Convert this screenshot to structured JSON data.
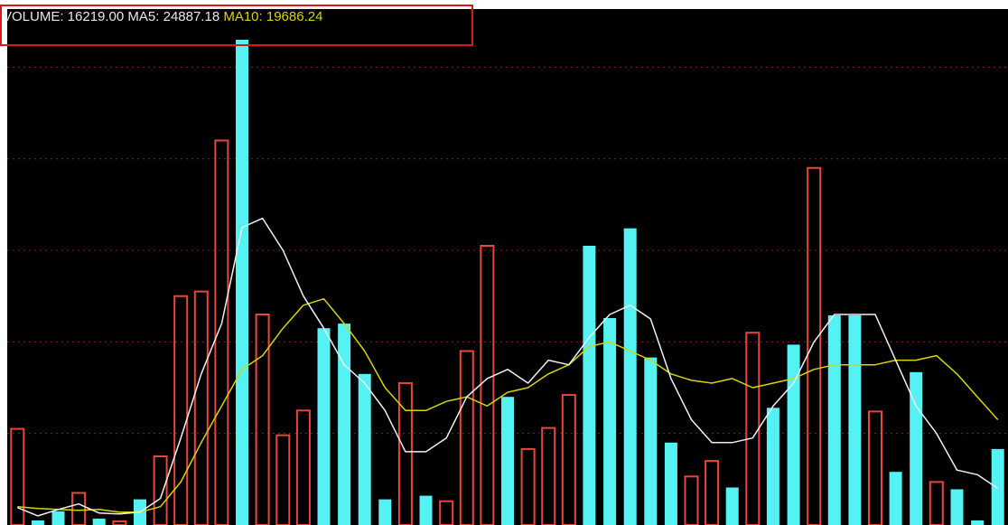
{
  "header": {
    "volume_text": "VOLUME: 16219.00",
    "ma5_text": "MA5: 24887.18",
    "ma10_text": "MA10: 19686.24"
  },
  "colors": {
    "background": "#000000",
    "up_bar": "#e8463c",
    "down_bar": "#54f2f2",
    "ma5_line": "#f0f0f0",
    "ma10_line": "#d8d400",
    "grid": "#8a1c1c",
    "highlight_box": "#d81818"
  },
  "chart_data": {
    "type": "bar",
    "title": "",
    "ylim": [
      0,
      53000
    ],
    "grid": true,
    "grid_values": [
      10000,
      20000,
      30000,
      40000,
      50000
    ],
    "bars": [
      {
        "value": 10500,
        "dir": "up"
      },
      {
        "value": 500,
        "dir": "down"
      },
      {
        "value": 1500,
        "dir": "down"
      },
      {
        "value": 3500,
        "dir": "up"
      },
      {
        "value": 700,
        "dir": "down"
      },
      {
        "value": 400,
        "dir": "up"
      },
      {
        "value": 2800,
        "dir": "down"
      },
      {
        "value": 7500,
        "dir": "up"
      },
      {
        "value": 25000,
        "dir": "up"
      },
      {
        "value": 25500,
        "dir": "up"
      },
      {
        "value": 42000,
        "dir": "up"
      },
      {
        "value": 53000,
        "dir": "down"
      },
      {
        "value": 23000,
        "dir": "up"
      },
      {
        "value": 9800,
        "dir": "up"
      },
      {
        "value": 12500,
        "dir": "up"
      },
      {
        "value": 21500,
        "dir": "down"
      },
      {
        "value": 22000,
        "dir": "down"
      },
      {
        "value": 16500,
        "dir": "down"
      },
      {
        "value": 2800,
        "dir": "down"
      },
      {
        "value": 15500,
        "dir": "up"
      },
      {
        "value": 3200,
        "dir": "down"
      },
      {
        "value": 2600,
        "dir": "up"
      },
      {
        "value": 19000,
        "dir": "up"
      },
      {
        "value": 30500,
        "dir": "up"
      },
      {
        "value": 14000,
        "dir": "down"
      },
      {
        "value": 8300,
        "dir": "up"
      },
      {
        "value": 10600,
        "dir": "up"
      },
      {
        "value": 14200,
        "dir": "up"
      },
      {
        "value": 30500,
        "dir": "down"
      },
      {
        "value": 22600,
        "dir": "down"
      },
      {
        "value": 32400,
        "dir": "down"
      },
      {
        "value": 18300,
        "dir": "down"
      },
      {
        "value": 9000,
        "dir": "down"
      },
      {
        "value": 5300,
        "dir": "up"
      },
      {
        "value": 7000,
        "dir": "up"
      },
      {
        "value": 4100,
        "dir": "down"
      },
      {
        "value": 21000,
        "dir": "up"
      },
      {
        "value": 12800,
        "dir": "down"
      },
      {
        "value": 19700,
        "dir": "down"
      },
      {
        "value": 39000,
        "dir": "up"
      },
      {
        "value": 22900,
        "dir": "down"
      },
      {
        "value": 22900,
        "dir": "down"
      },
      {
        "value": 12400,
        "dir": "up"
      },
      {
        "value": 5800,
        "dir": "down"
      },
      {
        "value": 16700,
        "dir": "down"
      },
      {
        "value": 4700,
        "dir": "up"
      },
      {
        "value": 3900,
        "dir": "down"
      },
      {
        "value": 500,
        "dir": "down"
      },
      {
        "value": 8300,
        "dir": "down"
      }
    ],
    "ma5": [
      1900,
      1000,
      1700,
      2300,
      1300,
      1200,
      1400,
      2900,
      9500,
      16500,
      22000,
      32500,
      33500,
      30000,
      25000,
      21500,
      17500,
      15500,
      12500,
      8000,
      8000,
      9500,
      14000,
      16000,
      17000,
      15500,
      18000,
      17500,
      20500,
      23000,
      24000,
      22500,
      16000,
      11500,
      9000,
      9000,
      9500,
      13000,
      15500,
      20000,
      23000,
      23000,
      23000,
      18000,
      13000,
      10000,
      6000,
      5500,
      4000
    ],
    "ma10": [
      2000,
      1800,
      1700,
      1600,
      1700,
      1400,
      1400,
      2000,
      4700,
      9000,
      13000,
      17000,
      18500,
      21500,
      24000,
      24700,
      22000,
      19000,
      15000,
      12500,
      12500,
      13500,
      14000,
      13000,
      14500,
      15000,
      16500,
      17500,
      19500,
      20000,
      19000,
      18000,
      16500,
      15800,
      15500,
      16000,
      15000,
      15500,
      16000,
      17000,
      17500,
      17500,
      17500,
      18000,
      18000,
      18500,
      16500,
      14000,
      11500
    ]
  }
}
